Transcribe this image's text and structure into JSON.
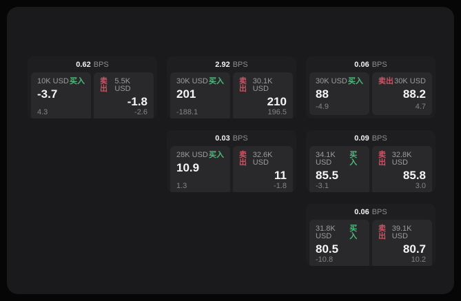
{
  "labels": {
    "bps_unit": "BPS",
    "buy": "买入",
    "sell": "卖出"
  },
  "colors": {
    "buy_green": "#4fb97c",
    "sell_red": "#cd5364",
    "surface_bg": "#1a1a1c",
    "card_bg": "#1e1e20",
    "panel_bg": "#29292b",
    "outer_bg": "#060607"
  },
  "cards": [
    {
      "bps": "0.62",
      "grid": {
        "row": 1,
        "col": 1
      },
      "buy": {
        "amount": "10K USD",
        "value": "-3.7",
        "sub": "4.3"
      },
      "sell": {
        "amount": "5.5K USD",
        "value": "-1.8",
        "sub": "-2.6"
      }
    },
    {
      "bps": "2.92",
      "grid": {
        "row": 1,
        "col": 2
      },
      "buy": {
        "amount": "30K USD",
        "value": "201",
        "sub": "-188.1"
      },
      "sell": {
        "amount": "30.1K USD",
        "value": "210",
        "sub": "196.5"
      }
    },
    {
      "bps": "0.06",
      "grid": {
        "row": 1,
        "col": 3
      },
      "buy": {
        "amount": "30K USD",
        "value": "88",
        "sub": "-4.9"
      },
      "sell": {
        "amount": "30K USD",
        "value": "88.2",
        "sub": "4.7"
      }
    },
    {
      "bps": "0.03",
      "grid": {
        "row": 2,
        "col": 2
      },
      "buy": {
        "amount": "28K USD",
        "value": "10.9",
        "sub": "1.3"
      },
      "sell": {
        "amount": "32.6K USD",
        "value": "11",
        "sub": "-1.8"
      }
    },
    {
      "bps": "0.09",
      "grid": {
        "row": 2,
        "col": 3
      },
      "buy": {
        "amount": "34.1K USD",
        "value": "85.5",
        "sub": "-3.1"
      },
      "sell": {
        "amount": "32.8K USD",
        "value": "85.8",
        "sub": "3.0"
      }
    },
    {
      "bps": "0.06",
      "grid": {
        "row": 3,
        "col": 3
      },
      "buy": {
        "amount": "31.8K USD",
        "value": "80.5",
        "sub": "-10.8"
      },
      "sell": {
        "amount": "39.1K USD",
        "value": "80.7",
        "sub": "10.2"
      }
    }
  ]
}
